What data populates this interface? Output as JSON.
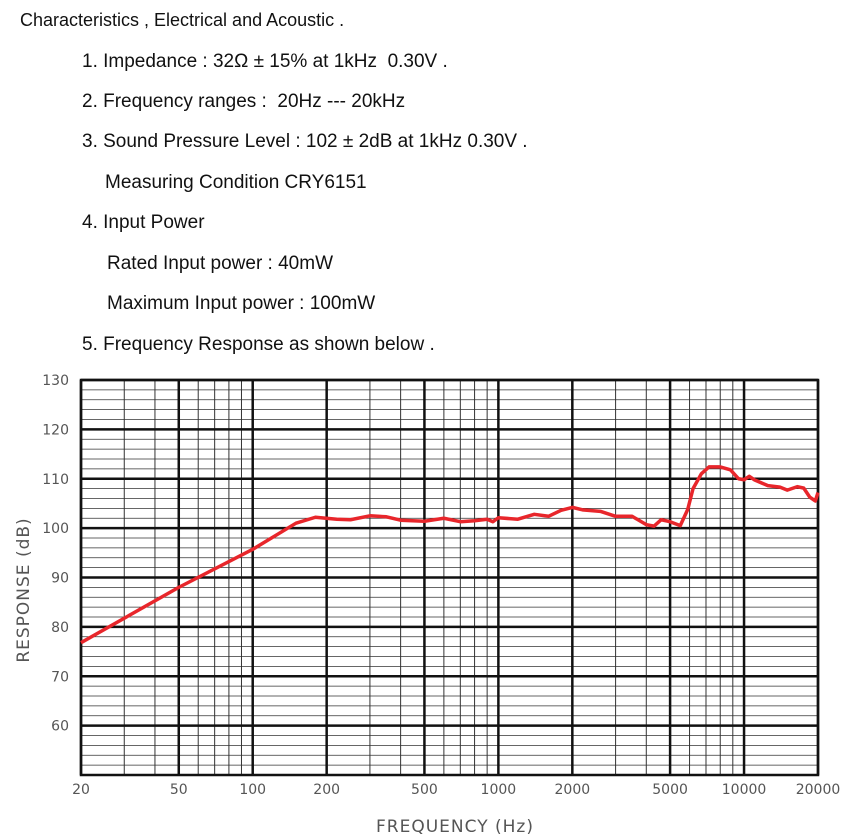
{
  "heading": "Characteristics , Electrical and Acoustic .",
  "lines": [
    "1. Impedance : 32Ω ± 15% at 1kHz  0.30V .",
    "2. Frequency ranges :  20Hz --- 20kHz",
    "3. Sound Pressure Level : 102 ± 2dB at 1kHz 0.30V .",
    "Measuring Condition CRY6151",
    "4. Input Power",
    "Rated Input power : 40mW",
    "Maximum Input power : 100mW",
    "5. Frequency Response as shown below ."
  ],
  "chart_data": {
    "type": "line",
    "x_label": "FREQUENCY (Hz)",
    "y_label": "RESPONSE (dB)",
    "xscale": "log",
    "grid": true,
    "xlim": [
      20,
      20000
    ],
    "xticks": [
      20,
      50,
      100,
      200,
      500,
      1000,
      2000,
      5000,
      10000,
      20000
    ],
    "ylim": [
      50,
      130
    ],
    "yticks": [
      60,
      70,
      80,
      90,
      100,
      110,
      120,
      130
    ],
    "x": [
      20,
      50,
      100,
      150,
      180,
      220,
      250,
      300,
      350,
      400,
      500,
      600,
      700,
      800,
      900,
      950,
      1000,
      1200,
      1400,
      1600,
      1800,
      2000,
      2200,
      2600,
      3000,
      3500,
      4000,
      4300,
      4600,
      5000,
      5500,
      5900,
      6200,
      6700,
      7200,
      8000,
      8800,
      9500,
      10000,
      10500,
      11000,
      12500,
      14000,
      15000,
      16500,
      17500,
      18500,
      19500,
      20000
    ],
    "series": [
      {
        "color": "#e8262b",
        "values": [
          76.8,
          88,
          95.7,
          101,
          102.2,
          101.8,
          101.7,
          102.5,
          102.3,
          101.6,
          101.4,
          102,
          101.3,
          101.5,
          101.8,
          101.3,
          102.1,
          101.8,
          102.8,
          102.4,
          103.6,
          104.2,
          103.7,
          103.4,
          102.4,
          102.4,
          100.7,
          100.4,
          101.7,
          101.3,
          100.5,
          103.8,
          108,
          111,
          112.4,
          112.4,
          111.8,
          110,
          109.8,
          110.5,
          109.8,
          108.6,
          108.3,
          107.7,
          108.4,
          108.1,
          106.3,
          105.5,
          107.2
        ]
      }
    ]
  }
}
